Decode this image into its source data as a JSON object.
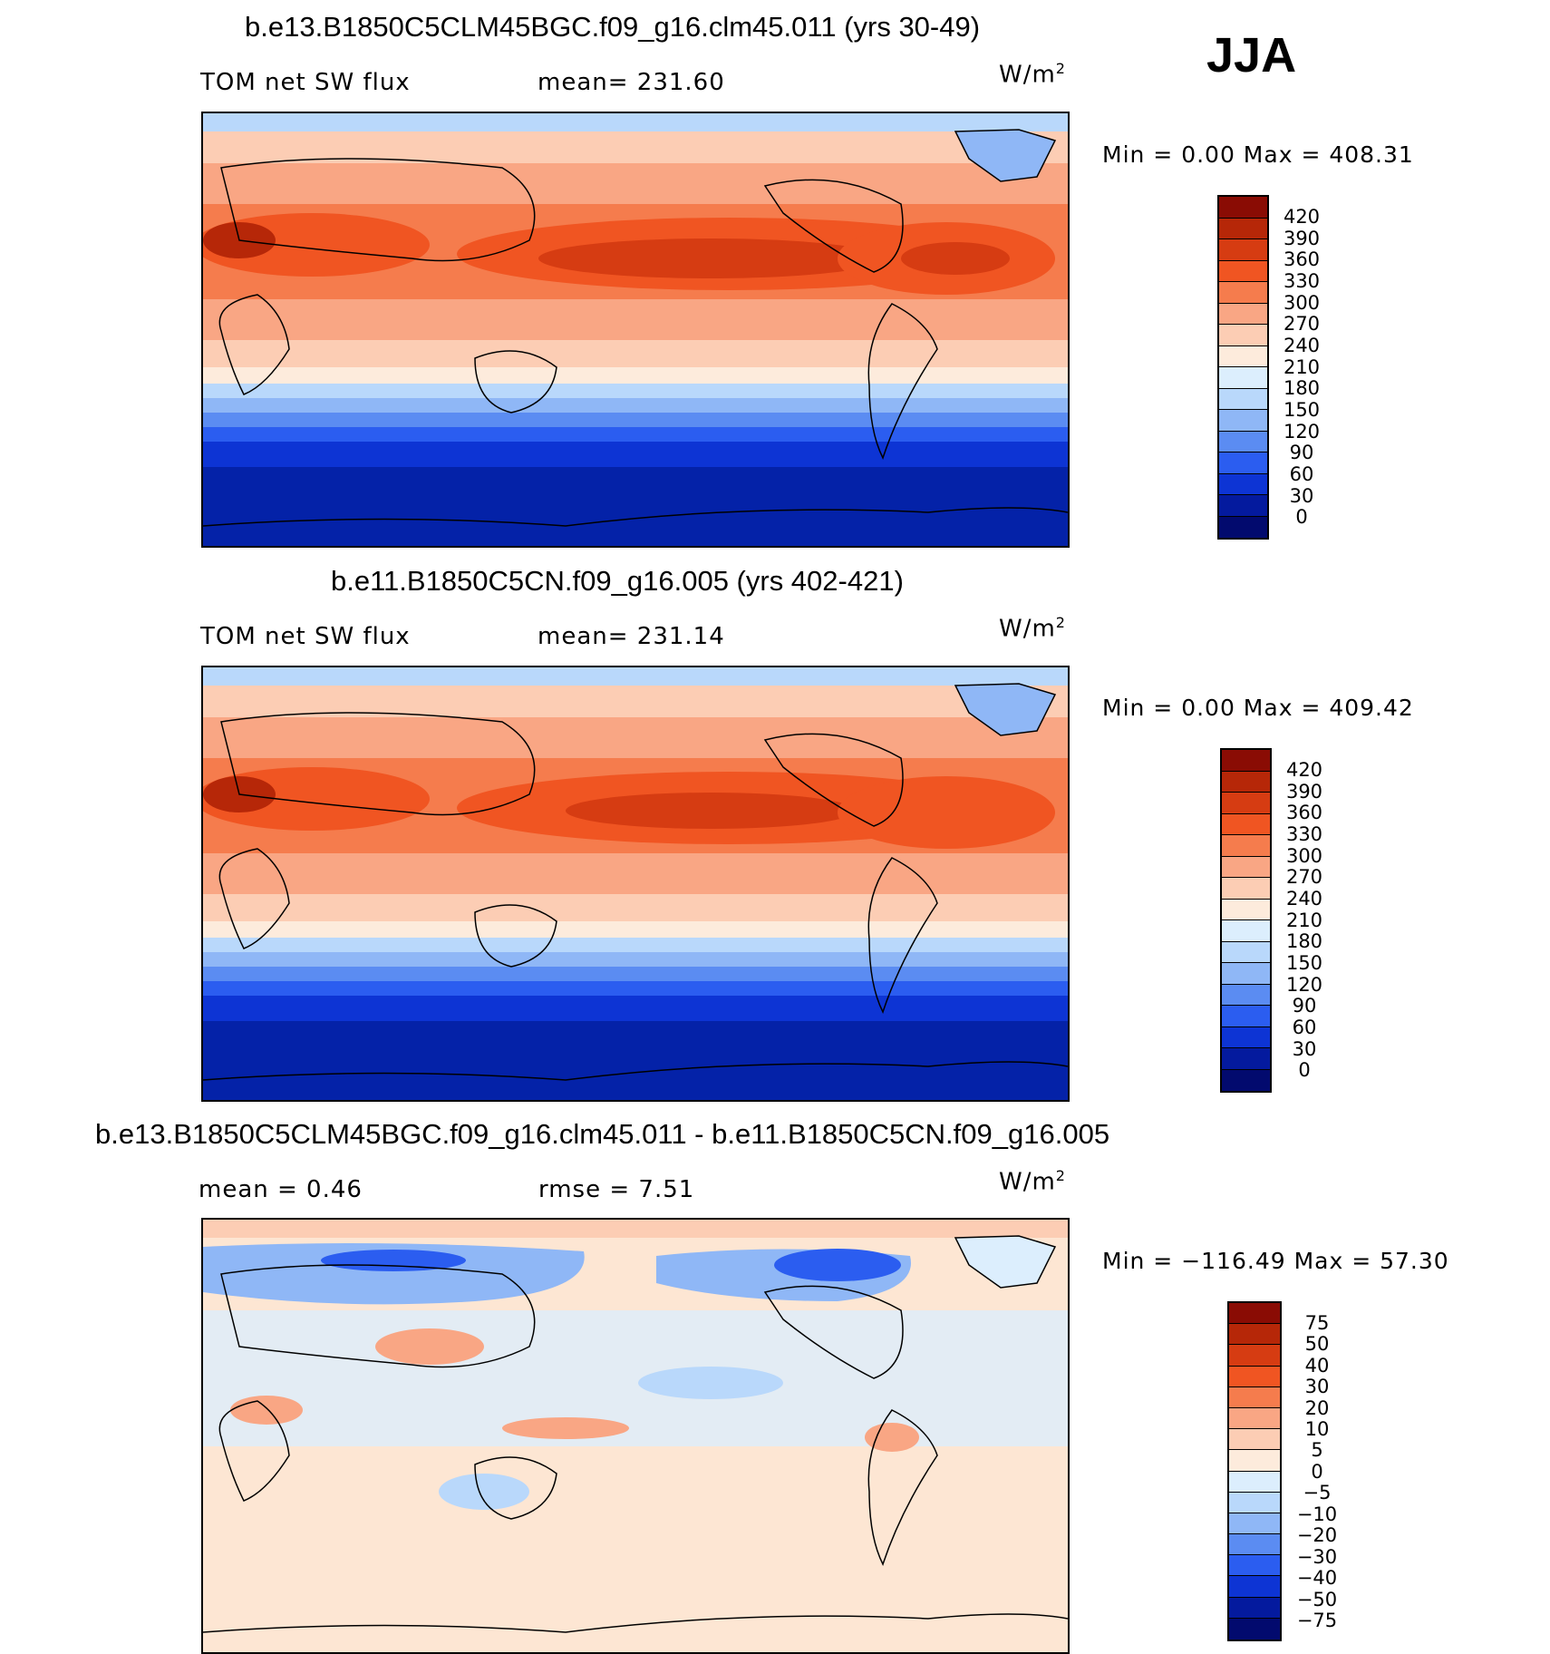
{
  "season": "JJA",
  "units_text": "W/m",
  "units_sup": "2",
  "panels": [
    {
      "title": "b.e13.B1850C5CLM45BGC.f09_g16.clm45.011 (yrs 30-49)",
      "left_label": "TOM  net  SW  flux",
      "center_label": "mean=  231.60",
      "minmax": "Min  =      0.00  Max  =  408.31",
      "cbar_labels": [
        "420",
        "390",
        "360",
        "330",
        "300",
        "270",
        "240",
        "210",
        "180",
        "150",
        "120",
        "90",
        "60",
        "30",
        "0"
      ],
      "cbar_colors": [
        "#8a0c04",
        "#b62708",
        "#d63c12",
        "#f05522",
        "#f57c4d",
        "#f9a684",
        "#fccdb4",
        "#fdebdc",
        "#dceefd",
        "#b9d8fb",
        "#8fb7f6",
        "#5b8cf2",
        "#2b5df0",
        "#0d34d4",
        "#041a9e",
        "#020a6e"
      ]
    },
    {
      "title": "b.e11.B1850C5CN.f09_g16.005 (yrs 402-421)",
      "left_label": "TOM  net  SW  flux",
      "center_label": "mean=  231.14",
      "minmax": "Min  =      0.00  Max  =  409.42",
      "cbar_labels": [
        "420",
        "390",
        "360",
        "330",
        "300",
        "270",
        "240",
        "210",
        "180",
        "150",
        "120",
        "90",
        "60",
        "30",
        "0"
      ],
      "cbar_colors": [
        "#8a0c04",
        "#b62708",
        "#d63c12",
        "#f05522",
        "#f57c4d",
        "#f9a684",
        "#fccdb4",
        "#fdebdc",
        "#dceefd",
        "#b9d8fb",
        "#8fb7f6",
        "#5b8cf2",
        "#2b5df0",
        "#0d34d4",
        "#041a9e",
        "#020a6e"
      ]
    },
    {
      "title": "b.e13.B1850C5CLM45BGC.f09_g16.clm45.011 - b.e11.B1850C5CN.f09_g16.005",
      "left_label": "mean  =      0.46",
      "center_label": "rmse  =      7.51",
      "minmax": "Min  = −116.49  Max  =     57.30",
      "cbar_labels": [
        "75",
        "50",
        "40",
        "30",
        "20",
        "10",
        "5",
        "0",
        "−5",
        "−10",
        "−20",
        "−30",
        "−40",
        "−50",
        "−75"
      ],
      "cbar_colors": [
        "#8a0c04",
        "#b62708",
        "#d63c12",
        "#f05522",
        "#f57c4d",
        "#f9a684",
        "#fccdb4",
        "#fdebdc",
        "#dceefd",
        "#b9d8fb",
        "#8fb7f6",
        "#5b8cf2",
        "#2b5df0",
        "#0d34d4",
        "#041a9e",
        "#020a6e"
      ]
    }
  ],
  "map_colors": {
    "polar_n": "#b9d8fb",
    "arctic_band": "#fccdb4",
    "midlat": "#f9a684",
    "subtrop": "#f05522",
    "subtrop_core": "#d63c12",
    "tropics": "#f57c4d",
    "south_sub": "#fdebdc",
    "south_band1": "#b9d8fb",
    "south_band2": "#5b8cf2",
    "south_band3": "#0d34d4",
    "antarctic": "#0422a8",
    "greenland": "#8fb7f6",
    "diff_bg": "#fde6d3",
    "diff_blue": "#b9d8fb",
    "diff_dark": "#2b5df0",
    "diff_red": "#f9a684"
  }
}
